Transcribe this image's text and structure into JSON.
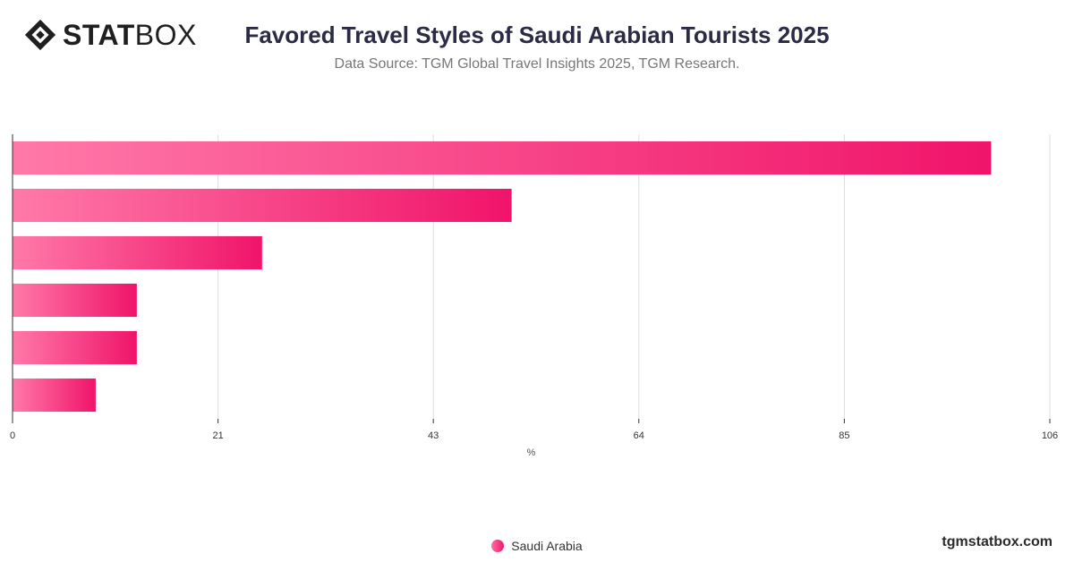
{
  "brand": {
    "logo_bold": "STAT",
    "logo_light": "BOX",
    "watermark": "tgmstatbox.com"
  },
  "header": {
    "title": "Favored Travel Styles of Saudi Arabian Tourists 2025",
    "subtitle": "Data Source: TGM Global Travel Insights 2025, TGM Research."
  },
  "chart_data": {
    "type": "bar",
    "orientation": "horizontal",
    "categories": [
      "",
      "",
      "",
      "",
      "",
      ""
    ],
    "series": [
      {
        "name": "Saudi Arabia",
        "values": [
          100,
          51,
          25.5,
          12.7,
          12.7,
          8.5
        ]
      }
    ],
    "xlabel": "%",
    "xlim": [
      0,
      106
    ],
    "xticks": [
      0,
      21,
      43,
      64,
      85,
      106
    ],
    "grid": true,
    "legend": "bottom-center",
    "colors": {
      "bar_start": "#ff79a8",
      "bar_end": "#f0146a",
      "grid": "#dddddd",
      "axis": "#333333"
    }
  }
}
